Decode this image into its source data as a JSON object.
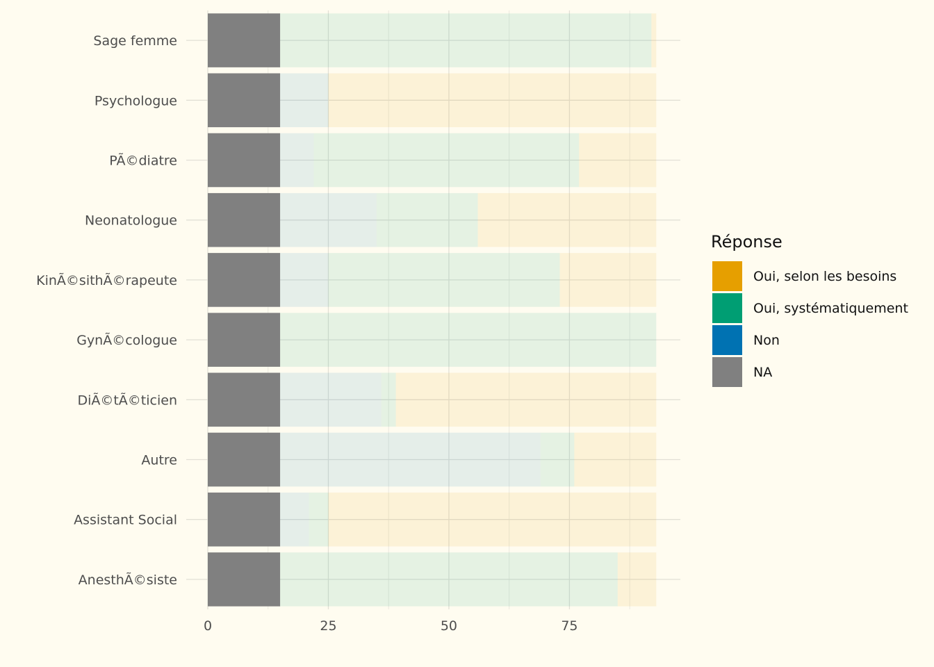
{
  "chart_data": {
    "type": "bar",
    "orientation": "horizontal",
    "stacked": true,
    "categories": [
      "Sage femme",
      "Psychologue",
      "PÃ©diatre",
      "Neonatologue",
      "KinÃ©sithÃ©rapeute",
      "GynÃ©cologue",
      "DiÃ©tÃ©ticien",
      "Autre",
      "Assistant Social",
      "AnesthÃ©siste"
    ],
    "series": [
      {
        "name": "NA",
        "color": "#808080",
        "faded": false,
        "values": [
          15,
          15,
          15,
          15,
          15,
          15,
          15,
          15,
          15,
          15
        ]
      },
      {
        "name": "Non",
        "color": "#0072B2",
        "faded": true,
        "values": [
          0,
          10,
          7,
          20,
          10,
          0,
          21,
          54,
          6,
          0
        ]
      },
      {
        "name": "Oui, systématiquement",
        "color": "#009E73",
        "faded": true,
        "values": [
          77,
          0,
          55,
          21,
          48,
          78,
          3,
          7,
          4,
          70
        ]
      },
      {
        "name": "Oui, selon les besoins",
        "color": "#E69F00",
        "faded": true,
        "values": [
          1,
          68,
          16,
          37,
          20,
          0,
          54,
          17,
          68,
          8
        ]
      }
    ],
    "xlim": [
      0,
      98
    ],
    "x_ticks": [
      0,
      25,
      50,
      75
    ],
    "x_minor_ticks": [
      12.5,
      37.5,
      62.5,
      87.5
    ],
    "xlabel": "",
    "ylabel": "",
    "grid": true,
    "legend": {
      "title": "Réponse",
      "position": "right",
      "items": [
        {
          "label": "Oui, selon les besoins",
          "color": "#E69F00"
        },
        {
          "label": "Oui, systématiquement",
          "color": "#009E73"
        },
        {
          "label": "Non",
          "color": "#0072B2"
        },
        {
          "label": "NA",
          "color": "#808080"
        }
      ]
    }
  }
}
